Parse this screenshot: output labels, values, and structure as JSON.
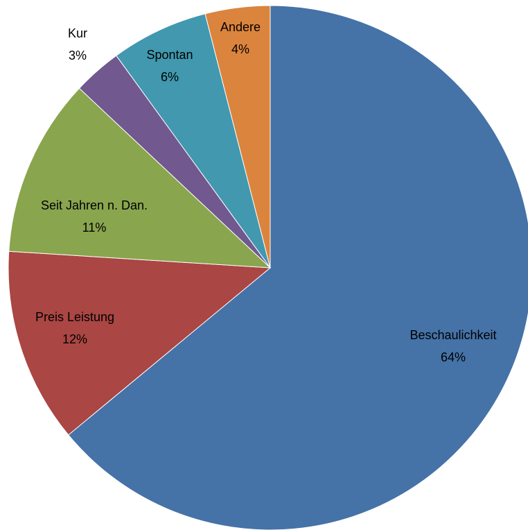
{
  "chart_data": {
    "type": "pie",
    "title": "",
    "slices": [
      {
        "label": "Beschaulichkeit",
        "value": 64,
        "value_label": "64%",
        "color": "#4572A7"
      },
      {
        "label": "Preis Leistung",
        "value": 12,
        "value_label": "12%",
        "color": "#AA4643"
      },
      {
        "label": "Seit Jahren n. Dan.",
        "value": 11,
        "value_label": "11%",
        "color": "#89A54E"
      },
      {
        "label": "Kur",
        "value": 3,
        "value_label": "3%",
        "color": "#71588F"
      },
      {
        "label": "Spontan",
        "value": 6,
        "value_label": "6%",
        "color": "#4198AF"
      },
      {
        "label": "Andere",
        "value": 4,
        "value_label": "4%",
        "color": "#DB843D"
      }
    ],
    "start_angle_deg": 0,
    "direction": "clockwise",
    "legend": "none",
    "data_labels": "category-and-percent"
  }
}
